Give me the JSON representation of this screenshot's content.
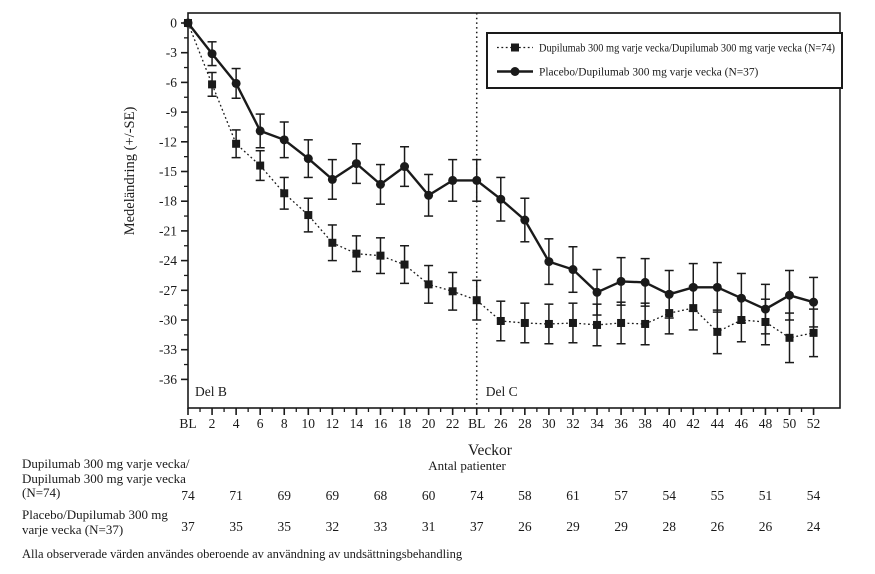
{
  "footnote": "Alla observerade värden  användes oberoende av användning av undsättningsbehandling",
  "patients_table": {
    "header": "Antal patienter",
    "columns_weeks": [
      0,
      4,
      8,
      12,
      16,
      20,
      24,
      28,
      32,
      36,
      40,
      44,
      48,
      52
    ],
    "rows": [
      {
        "label_lines": [
          "Dupilumab 300 mg varje vecka/",
          "Dupilumab 300 mg varje vecka",
          "(N=74)"
        ],
        "counts": [
          74,
          71,
          69,
          69,
          68,
          60,
          74,
          58,
          61,
          57,
          54,
          55,
          51,
          54
        ]
      },
      {
        "label_lines": [
          "Placebo/Dupilumab 300 mg",
          "varje vecka (N=37)",
          ""
        ],
        "counts": [
          37,
          35,
          35,
          32,
          33,
          31,
          37,
          26,
          29,
          29,
          28,
          26,
          26,
          24
        ]
      }
    ]
  },
  "chart_data": {
    "type": "line",
    "title": "",
    "xlabel": "Veckor",
    "ylabel": "Medeländring (+/-SE)",
    "sub_xlabel": "Antal patienter",
    "part_b_label": "Del B",
    "part_c_label": "Del C",
    "divider_week": 24,
    "x_weeks": [
      0,
      2,
      4,
      6,
      8,
      10,
      12,
      14,
      16,
      18,
      20,
      22,
      24,
      26,
      28,
      30,
      32,
      34,
      36,
      38,
      40,
      42,
      44,
      46,
      48,
      50,
      52
    ],
    "x_tick_labels": [
      "BL",
      "2",
      "4",
      "6",
      "8",
      "10",
      "12",
      "14",
      "16",
      "18",
      "20",
      "22",
      "BL",
      "26",
      "28",
      "30",
      "32",
      "34",
      "36",
      "38",
      "40",
      "42",
      "44",
      "46",
      "48",
      "50",
      "52"
    ],
    "ylim": [
      -36,
      0
    ],
    "y_ticks": [
      0,
      -3,
      -6,
      -9,
      -12,
      -15,
      -18,
      -21,
      -24,
      -27,
      -30,
      -33,
      -36
    ],
    "grid": "off",
    "legend_position": "top-right-inside",
    "series": [
      {
        "name": "Dupilumab 300 mg varje vecka/Dupilumab 300 mg varje vecka (N=74)",
        "marker": "square",
        "line": "dotted",
        "values": [
          0,
          -6.2,
          -12.2,
          -14.4,
          -17.2,
          -19.4,
          -22.2,
          -23.3,
          -23.5,
          -24.4,
          -26.4,
          -27.1,
          -28.0,
          -30.1,
          -30.3,
          -30.4,
          -30.3,
          -30.5,
          -30.3,
          -30.4,
          -29.3,
          -28.8,
          -31.2,
          -30.0,
          -30.2,
          -31.8,
          -31.3
        ],
        "se": [
          0,
          1.2,
          1.4,
          1.5,
          1.6,
          1.7,
          1.8,
          1.8,
          1.8,
          1.9,
          1.9,
          1.9,
          2.0,
          2.0,
          2.0,
          2.0,
          2.0,
          2.1,
          2.1,
          2.1,
          2.1,
          2.2,
          2.2,
          2.2,
          2.3,
          2.5,
          2.4
        ]
      },
      {
        "name": "Placebo/Dupilumab 300 mg varje vecka (N=37)",
        "marker": "circle",
        "line": "solid",
        "values": [
          0,
          -3.1,
          -6.1,
          -10.9,
          -11.8,
          -13.7,
          -15.8,
          -14.2,
          -16.3,
          -14.5,
          -17.4,
          -15.9,
          -15.9,
          -17.8,
          -19.9,
          -24.1,
          -24.9,
          -27.2,
          -26.1,
          -26.2,
          -27.4,
          -26.7,
          -26.7,
          -27.8,
          -28.9,
          -27.5,
          -28.2
        ],
        "se": [
          0,
          1.2,
          1.5,
          1.7,
          1.8,
          1.9,
          2.0,
          2.0,
          2.0,
          2.0,
          2.1,
          2.1,
          2.1,
          2.2,
          2.2,
          2.3,
          2.3,
          2.3,
          2.4,
          2.4,
          2.4,
          2.4,
          2.5,
          2.5,
          2.5,
          2.5,
          2.5
        ]
      }
    ],
    "colors": {
      "fg": "#1a1a1a",
      "bg": "#ffffff"
    }
  }
}
